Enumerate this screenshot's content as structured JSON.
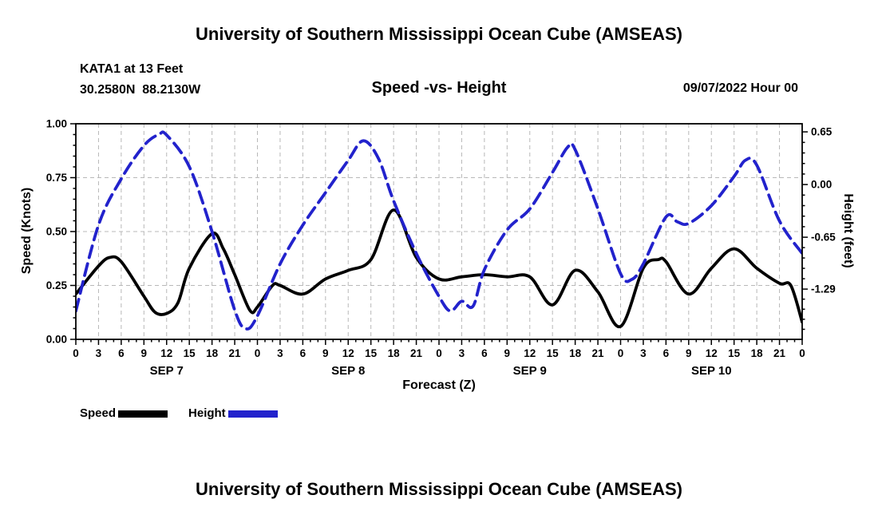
{
  "page": {
    "top_title": "University of Southern Mississippi Ocean Cube (AMSEAS)",
    "bottom_title": "University of Southern Mississippi Ocean Cube (AMSEAS)"
  },
  "header": {
    "station": "KATA1 at 13 Feet",
    "coordinates": "30.2580N  88.2130W",
    "plot_title": "Speed -vs- Height",
    "forecast_datetime": "09/07/2022 Hour 00"
  },
  "legend": {
    "speed_label": "Speed",
    "height_label": "Height",
    "speed_color": "#000000",
    "height_color": "#2222cc"
  },
  "chart_data": {
    "type": "line",
    "title": "Speed -vs- Height",
    "x_axis": {
      "label": "Forecast (Z)",
      "min": 0,
      "max": 96,
      "tick_hours": [
        0,
        3,
        6,
        9,
        12,
        15,
        18,
        21,
        24,
        27,
        30,
        33,
        36,
        39,
        42,
        45,
        48,
        51,
        54,
        57,
        60,
        63,
        66,
        69,
        72,
        75,
        78,
        81,
        84,
        87,
        90,
        93,
        96
      ],
      "tick_labels": [
        "0",
        "3",
        "6",
        "9",
        "12",
        "15",
        "18",
        "21",
        "0",
        "3",
        "6",
        "9",
        "12",
        "15",
        "18",
        "21",
        "0",
        "3",
        "6",
        "9",
        "12",
        "15",
        "18",
        "21",
        "0",
        "3",
        "6",
        "9",
        "12",
        "15",
        "18",
        "21",
        "0"
      ],
      "day_labels": [
        {
          "label": "SEP 7",
          "hour": 12
        },
        {
          "label": "SEP 8",
          "hour": 36
        },
        {
          "label": "SEP 9",
          "hour": 60
        },
        {
          "label": "SEP 10",
          "hour": 84
        }
      ]
    },
    "left_axis": {
      "label": "Speed (Knots)",
      "min": 0.0,
      "max": 1.0,
      "tick_values": [
        0.0,
        0.25,
        0.5,
        0.75,
        1.0
      ],
      "tick_labels": [
        "0.00",
        "0.25",
        "0.50",
        "0.75",
        "1.00"
      ],
      "minor_step": 0.05
    },
    "right_axis": {
      "label": "Height (feet)",
      "min": -1.91,
      "max": 0.75,
      "tick_values": [
        0.65,
        0.0,
        -0.65,
        -1.29
      ],
      "tick_labels": [
        "0.65",
        "0.00",
        "-0.65",
        "-1.29"
      ]
    },
    "grid": {
      "show": true,
      "color": "#b8b8b8",
      "style": "dashed"
    },
    "series": [
      {
        "name": "Speed",
        "axis": "left",
        "color": "#000000",
        "line_style": "solid",
        "x": [
          0,
          3,
          4.5,
          6,
          9,
          10.5,
          12,
          13.5,
          15,
          18,
          19.5,
          21,
          23,
          24,
          26,
          27,
          30,
          33,
          36,
          39,
          42,
          45,
          48,
          51,
          54,
          57,
          60,
          63,
          66,
          69,
          72,
          75,
          77,
          78,
          81,
          84,
          87,
          90,
          93,
          94.5,
          96
        ],
        "y": [
          0.21,
          0.34,
          0.38,
          0.36,
          0.2,
          0.125,
          0.12,
          0.17,
          0.33,
          0.49,
          0.42,
          0.3,
          0.135,
          0.15,
          0.25,
          0.25,
          0.21,
          0.28,
          0.32,
          0.37,
          0.6,
          0.38,
          0.28,
          0.29,
          0.3,
          0.29,
          0.29,
          0.16,
          0.32,
          0.22,
          0.06,
          0.33,
          0.37,
          0.36,
          0.21,
          0.33,
          0.42,
          0.33,
          0.26,
          0.25,
          0.08
        ]
      },
      {
        "name": "Height",
        "axis": "right",
        "color": "#2222cc",
        "line_style": "dashed",
        "x": [
          0,
          3,
          6,
          9,
          11,
          12,
          15,
          18,
          21,
          22.5,
          24,
          27,
          30,
          33,
          36,
          38,
          40,
          42,
          45,
          48,
          49.5,
          51,
          52.5,
          54,
          57,
          60,
          63,
          65,
          66,
          69,
          72,
          73.5,
          75,
          78,
          79.5,
          81,
          84,
          87,
          88.5,
          90,
          93,
          96
        ],
        "y": [
          -1.56,
          -0.5,
          0.07,
          0.48,
          0.62,
          0.61,
          0.22,
          -0.58,
          -1.55,
          -1.78,
          -1.62,
          -0.98,
          -0.5,
          -0.1,
          0.3,
          0.54,
          0.32,
          -0.2,
          -0.85,
          -1.38,
          -1.56,
          -1.44,
          -1.5,
          -1.05,
          -0.56,
          -0.3,
          0.15,
          0.46,
          0.43,
          -0.3,
          -1.1,
          -1.17,
          -0.98,
          -0.4,
          -0.46,
          -0.48,
          -0.26,
          0.1,
          0.3,
          0.24,
          -0.45,
          -0.85
        ]
      }
    ]
  }
}
